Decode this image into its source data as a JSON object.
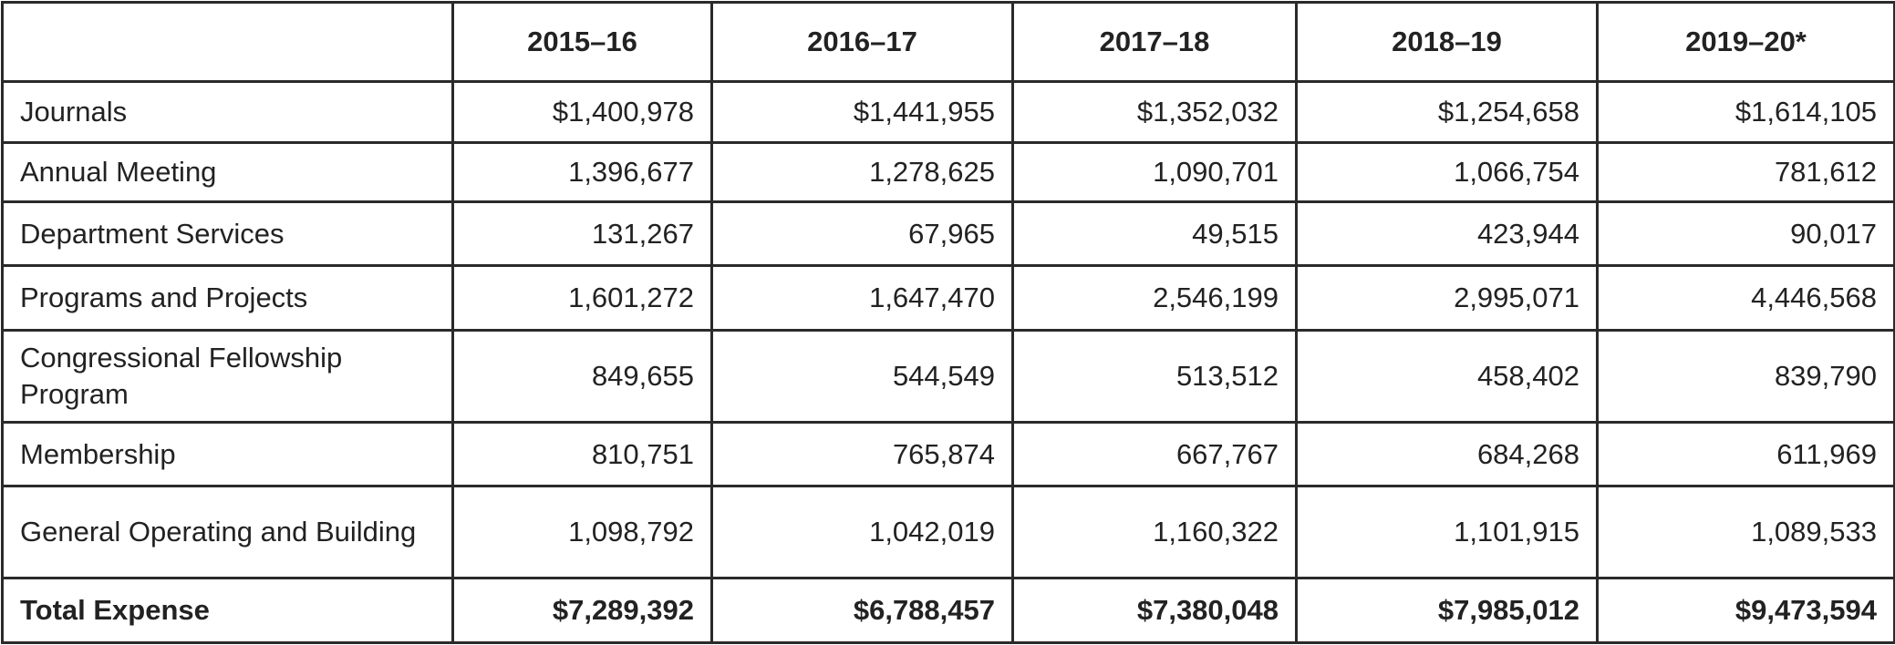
{
  "table": {
    "headers": [
      "2015–16",
      "2016–17",
      "2017–18",
      "2018–19",
      "2019–20*"
    ],
    "rows": [
      {
        "label": "Journals",
        "values": [
          "$1,400,978",
          "$1,441,955",
          "$1,352,032",
          "$1,254,658",
          "$1,614,105"
        ]
      },
      {
        "label": "Annual Meeting",
        "values": [
          "1,396,677",
          "1,278,625",
          "1,090,701",
          "1,066,754",
          "781,612"
        ]
      },
      {
        "label": "Department Services",
        "values": [
          "131,267",
          "67,965",
          "49,515",
          "423,944",
          "90,017"
        ]
      },
      {
        "label": "Programs and Projects",
        "values": [
          "1,601,272",
          "1,647,470",
          "2,546,199",
          "2,995,071",
          "4,446,568"
        ]
      },
      {
        "label": "Congressional Fellowship Program",
        "values": [
          "849,655",
          "544,549",
          "513,512",
          "458,402",
          "839,790"
        ]
      },
      {
        "label": "Membership",
        "values": [
          "810,751",
          "765,874",
          "667,767",
          "684,268",
          "611,969"
        ]
      },
      {
        "label": "General Operating and Building",
        "values": [
          "1,098,792",
          "1,042,019",
          "1,160,322",
          "1,101,915",
          "1,089,533"
        ]
      }
    ],
    "total": {
      "label": "Total Expense",
      "values": [
        "$7,289,392",
        "$6,788,457",
        "$7,380,048",
        "$7,985,012",
        "$9,473,594"
      ]
    }
  }
}
